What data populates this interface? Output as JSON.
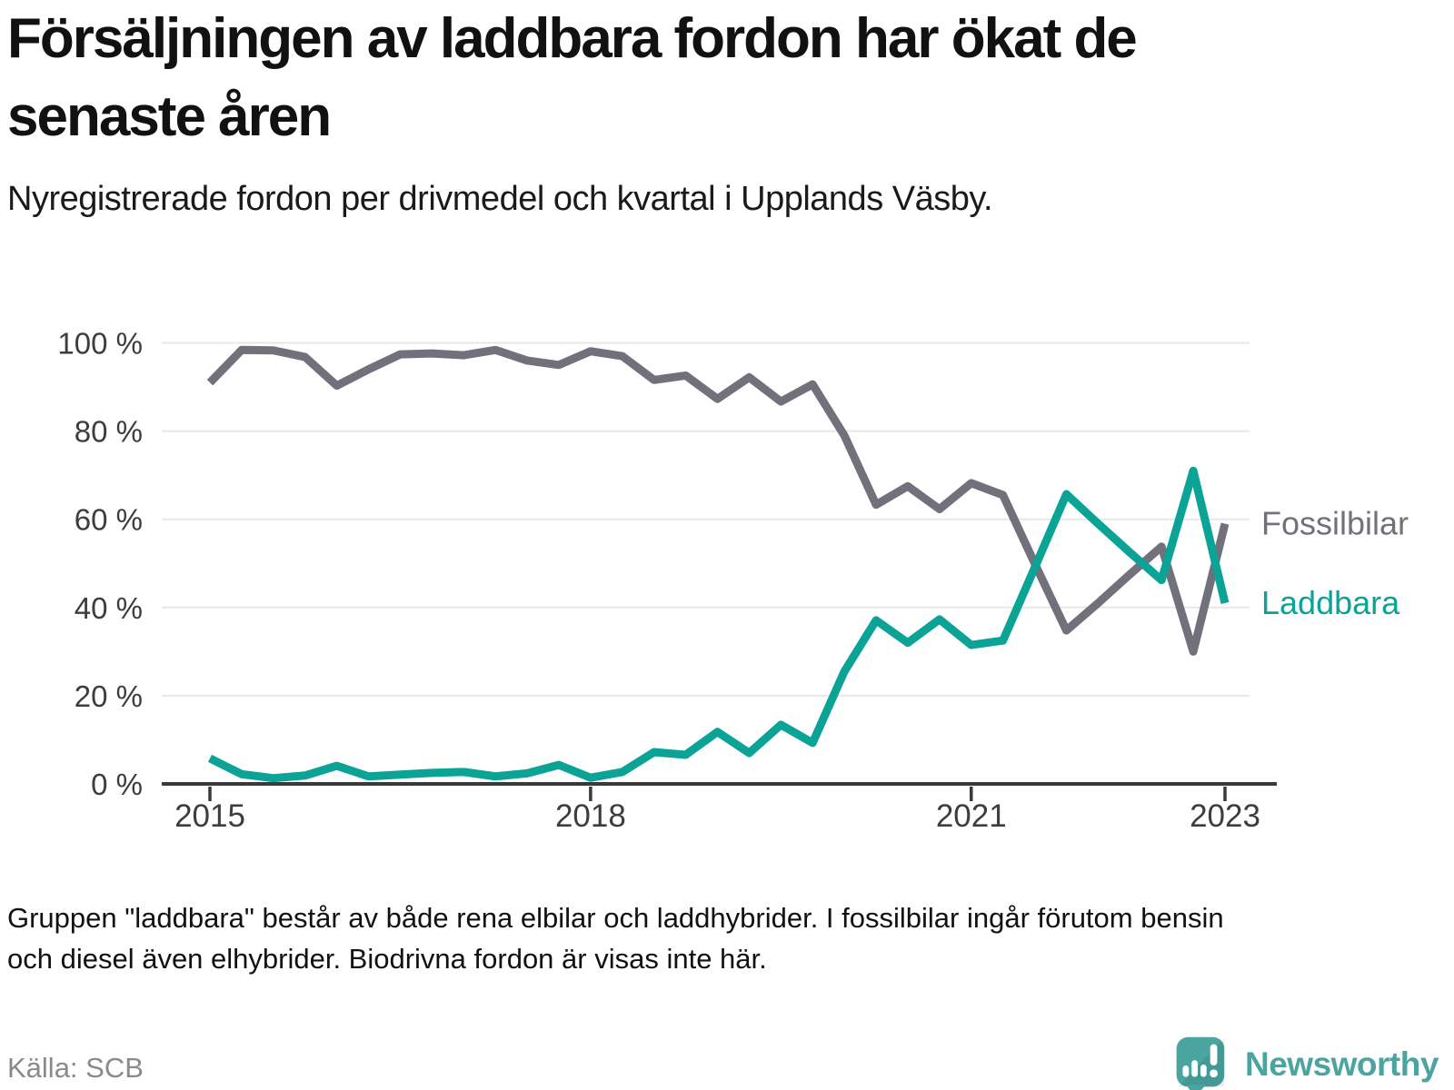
{
  "header": {
    "title_lines": [
      "Försäljningen av laddbara fordon har ökat de",
      "senaste åren"
    ],
    "subtitle": "Nyregistrerade fordon per drivmedel och kvartal i Upplands Väsby."
  },
  "chart_data": {
    "type": "line",
    "unit": "%",
    "ylim": [
      0,
      100
    ],
    "grid": "horizontal",
    "legend_position": "right-of-line-ends",
    "y_ticks": [
      {
        "label": "100 %",
        "value": 100
      },
      {
        "label": "80 %",
        "value": 80
      },
      {
        "label": "60 %",
        "value": 60
      },
      {
        "label": "40 %",
        "value": 40
      },
      {
        "label": "20 %",
        "value": 20
      },
      {
        "label": "0 %",
        "value": 0
      }
    ],
    "x_ticks": [
      {
        "label": "2015",
        "q": 0
      },
      {
        "label": "2018",
        "q": 12
      },
      {
        "label": "2021",
        "q": 24
      },
      {
        "label": "2023",
        "q": 32
      }
    ],
    "quarters": [
      "2015 Q1",
      "2015 Q2",
      "2015 Q3",
      "2015 Q4",
      "2016 Q1",
      "2016 Q2",
      "2016 Q3",
      "2016 Q4",
      "2017 Q1",
      "2017 Q2",
      "2017 Q3",
      "2017 Q4",
      "2018 Q1",
      "2018 Q2",
      "2018 Q3",
      "2018 Q4",
      "2019 Q1",
      "2019 Q2",
      "2019 Q3",
      "2019 Q4",
      "2020 Q1",
      "2020 Q2",
      "2020 Q3",
      "2020 Q4",
      "2021 Q1",
      "2021 Q2",
      "2021 Q3",
      "2021 Q4",
      "2022 Q1",
      "2022 Q2",
      "2022 Q3",
      "2022 Q4",
      "2023 Q1"
    ],
    "series": [
      {
        "name": "Fossilbilar",
        "color": "#71717b",
        "values": [
          91,
          98.4,
          98.3,
          96.8,
          90.3,
          94,
          97.4,
          97.6,
          97.2,
          98.4,
          96,
          95,
          98.1,
          97,
          91.6,
          92.6,
          87.3,
          92.2,
          86.7,
          90.6,
          79,
          63.3,
          67.5,
          62.3,
          68.2,
          65.5,
          50,
          34.8,
          41,
          47.5,
          53.8,
          30,
          59
        ]
      },
      {
        "name": "Laddbara",
        "color": "#0aa396",
        "values": [
          5.8,
          2.2,
          1.3,
          1.9,
          4.1,
          1.7,
          2.1,
          2.5,
          2.7,
          1.7,
          2.4,
          4.3,
          1.4,
          2.7,
          7.2,
          6.6,
          11.8,
          7,
          13.4,
          9.3,
          25.5,
          37.1,
          32,
          37.3,
          31.5,
          32.5,
          49,
          65.7,
          59,
          52.5,
          46.2,
          71,
          41
        ]
      }
    ]
  },
  "footnote_lines": [
    "Gruppen \"laddbara\" består av både rena elbilar och laddhybrider. I fossilbilar ingår förutom bensin",
    "och diesel även elhybrider. Biodrivna fordon är visas inte här."
  ],
  "source": "Källa: SCB",
  "logo": {
    "text": "Newsworthy",
    "color": "#4aa5a1",
    "icon": "speech-bubble-chart-icon"
  }
}
